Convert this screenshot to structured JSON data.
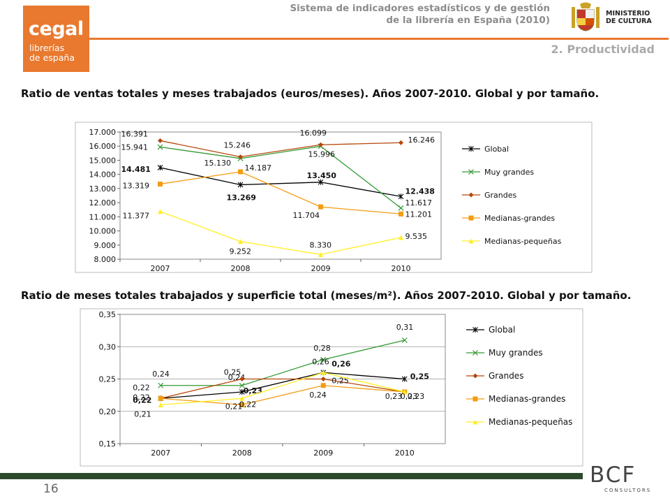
{
  "logo": {
    "line1": "cegal",
    "line2": "librerías",
    "line3": "de españa"
  },
  "header": {
    "line1": "Sistema de indicadores estadísticos y de gestión",
    "line2": "de la librería en España (2010)",
    "ministry_line1": "MINISTERIO",
    "ministry_line2": "DE CULTURA",
    "section": "2. Productividad"
  },
  "footer": {
    "page": "16",
    "brand": "BCF",
    "brand_sub": "CONSULTORS"
  },
  "colors": {
    "global": "#000000",
    "muy_grandes": "#339933",
    "grandes": "#b5470a",
    "medianas_grandes": "#f39c12",
    "medianas_pequenas": "#ffee22",
    "accent": "#e8792f"
  },
  "chart_data": [
    {
      "type": "line",
      "title": "Ratio de ventas totales y meses trabajados (euros/meses). Años 2007-2010. Global y por tamaño.",
      "categories": [
        "2007",
        "2008",
        "2009",
        "2010"
      ],
      "ylim": [
        8000,
        17000
      ],
      "yticks": [
        "8.000",
        "9.000",
        "10.000",
        "11.000",
        "12.000",
        "13.000",
        "14.000",
        "15.000",
        "16.000",
        "17.000"
      ],
      "grid": false,
      "legend": "right",
      "series": [
        {
          "name": "Global",
          "color": "#000000",
          "marker": "star",
          "values": [
            14481,
            13269,
            13450,
            12438
          ],
          "labels": [
            "14.481",
            "13.269",
            "13.450",
            "12.438"
          ],
          "bold": true
        },
        {
          "name": "Muy grandes",
          "color": "#339933",
          "marker": "x",
          "values": [
            15941,
            15130,
            15996,
            11617
          ],
          "labels": [
            "15.941",
            "15.130",
            "15.996",
            "11.617"
          ],
          "bold": false
        },
        {
          "name": "Grandes",
          "color": "#b5470a",
          "marker": "diamond",
          "values": [
            16391,
            15246,
            16099,
            16246
          ],
          "labels": [
            "16.391",
            "15.246",
            "16.099",
            "16.246"
          ],
          "bold": false
        },
        {
          "name": "Medianas-grandes",
          "color": "#f39c12",
          "marker": "square",
          "values": [
            13319,
            14187,
            11704,
            11201
          ],
          "labels": [
            "13.319",
            "14.187",
            "11.704",
            "11.201"
          ],
          "bold": false
        },
        {
          "name": "Medianas-pequeñas",
          "color": "#ffee22",
          "marker": "triangle",
          "values": [
            11377,
            9252,
            8330,
            9535
          ],
          "labels": [
            "11.377",
            "9.252",
            "8.330",
            "9.535"
          ],
          "bold": false
        }
      ]
    },
    {
      "type": "line",
      "title": "Ratio de meses totales trabajados y superficie total (meses/m²). Años 2007-2010. Global y por tamaño.",
      "categories": [
        "2007",
        "2008",
        "2009",
        "2010"
      ],
      "ylim": [
        0.15,
        0.35
      ],
      "yticks": [
        "0,15",
        "0,20",
        "0,25",
        "0,30",
        "0,35"
      ],
      "grid": true,
      "legend": "right",
      "series": [
        {
          "name": "Global",
          "color": "#000000",
          "marker": "star",
          "values": [
            0.22,
            0.23,
            0.26,
            0.25
          ],
          "labels": [
            "0,22",
            "0,23",
            "0,26",
            "0,25"
          ],
          "bold": true
        },
        {
          "name": "Muy grandes",
          "color": "#339933",
          "marker": "x",
          "values": [
            0.24,
            0.24,
            0.28,
            0.31
          ],
          "labels": [
            "0,24",
            "0,24",
            "0,28",
            "0,31"
          ],
          "bold": false
        },
        {
          "name": "Grandes",
          "color": "#b5470a",
          "marker": "diamond",
          "values": [
            0.22,
            0.25,
            0.25,
            0.23
          ],
          "labels": [
            "0,22",
            "0,25",
            "0,25",
            "0,23"
          ],
          "bold": false
        },
        {
          "name": "Medianas-grandes",
          "color": "#f39c12",
          "marker": "square",
          "values": [
            0.22,
            0.21,
            0.24,
            0.23
          ],
          "labels": [
            "0,22",
            "0,21",
            "0,24",
            "0,23"
          ],
          "bold": false
        },
        {
          "name": "Medianas-pequeñas",
          "color": "#ffee22",
          "marker": "triangle",
          "values": [
            0.21,
            0.22,
            0.26,
            0.23
          ],
          "labels": [
            "0,21",
            "0,22",
            "0,26",
            "0,23"
          ],
          "bold": false
        }
      ]
    }
  ]
}
